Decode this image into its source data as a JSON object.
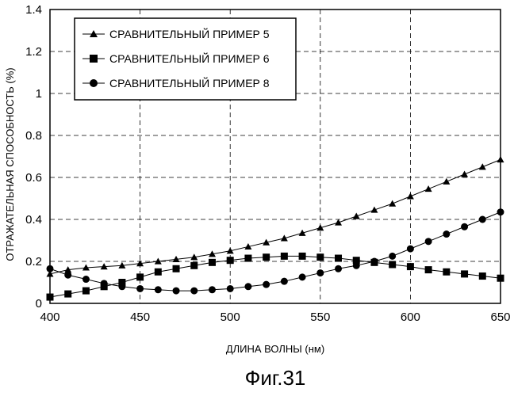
{
  "figure_caption": "Фиг.31",
  "chart_data": {
    "type": "line",
    "title": "",
    "xlabel": "ДЛИНА ВОЛНЫ (нм)",
    "ylabel": "ОТРАЖАТЕЛЬНАЯ СПОСОБНОСТЬ (%)",
    "xlim": [
      400,
      650
    ],
    "ylim": [
      0,
      1.4
    ],
    "x_ticks": [
      "400",
      "450",
      "500",
      "550",
      "600",
      "650"
    ],
    "y_ticks": [
      "0",
      "0.2",
      "0.4",
      "0.6",
      "0.8",
      "1",
      "1.2",
      "1.4"
    ],
    "grid": "dashed",
    "legend_position": "top-left",
    "x": [
      400,
      410,
      420,
      430,
      440,
      450,
      460,
      470,
      480,
      490,
      500,
      510,
      520,
      530,
      540,
      550,
      560,
      570,
      580,
      590,
      600,
      610,
      620,
      630,
      640,
      650
    ],
    "series": [
      {
        "name": "СРАВНИТЕЛЬНЫЙ ПРИМЕР 5",
        "marker": "triangle",
        "values": [
          0.14,
          0.16,
          0.17,
          0.175,
          0.18,
          0.19,
          0.2,
          0.21,
          0.22,
          0.235,
          0.25,
          0.27,
          0.29,
          0.31,
          0.335,
          0.36,
          0.385,
          0.415,
          0.445,
          0.475,
          0.51,
          0.545,
          0.58,
          0.615,
          0.65,
          0.685
        ]
      },
      {
        "name": "СРАВНИТЕЛЬНЫЙ ПРИМЕР 6",
        "marker": "square",
        "values": [
          0.03,
          0.045,
          0.06,
          0.08,
          0.1,
          0.125,
          0.15,
          0.165,
          0.18,
          0.195,
          0.205,
          0.215,
          0.22,
          0.225,
          0.225,
          0.22,
          0.215,
          0.205,
          0.195,
          0.185,
          0.175,
          0.16,
          0.15,
          0.14,
          0.13,
          0.12
        ]
      },
      {
        "name": "СРАВНИТЕЛЬНЫЙ ПРИМЕР 8",
        "marker": "circle",
        "values": [
          0.165,
          0.135,
          0.115,
          0.095,
          0.08,
          0.07,
          0.065,
          0.06,
          0.06,
          0.065,
          0.07,
          0.08,
          0.09,
          0.105,
          0.125,
          0.145,
          0.165,
          0.18,
          0.2,
          0.225,
          0.26,
          0.295,
          0.33,
          0.365,
          0.4,
          0.435
        ]
      }
    ]
  }
}
